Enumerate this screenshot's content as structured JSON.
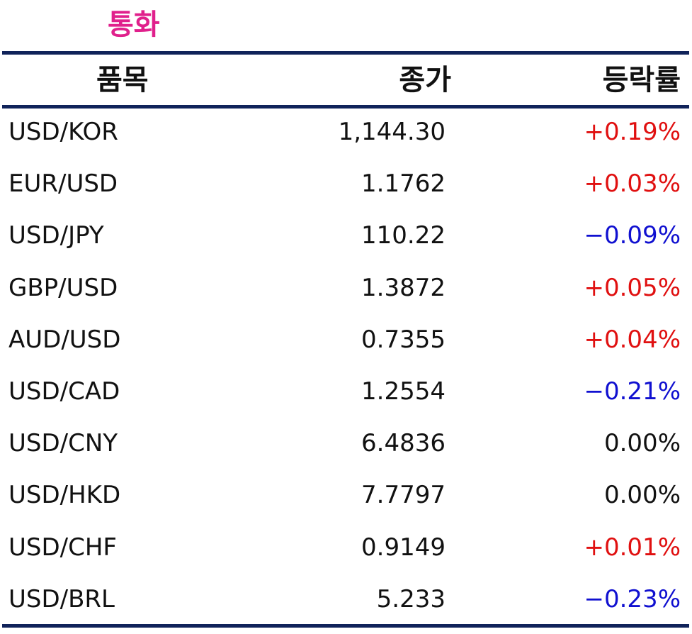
{
  "title": "통화",
  "colors": {
    "title": "#e0208c",
    "rule": "#10235a",
    "up": "#e01010",
    "down": "#1010d0",
    "flat": "#111111"
  },
  "headers": {
    "item": "품목",
    "close": "종가",
    "change": "등락률"
  },
  "rows": [
    {
      "item": "USD/KOR",
      "close": "1,144.30",
      "change": "+0.19%",
      "direction": "up"
    },
    {
      "item": "EUR/USD",
      "close": "1.1762",
      "change": "+0.03%",
      "direction": "up"
    },
    {
      "item": "USD/JPY",
      "close": "110.22",
      "change": "−0.09%",
      "direction": "down"
    },
    {
      "item": "GBP/USD",
      "close": "1.3872",
      "change": "+0.05%",
      "direction": "up"
    },
    {
      "item": "AUD/USD",
      "close": "0.7355",
      "change": "+0.04%",
      "direction": "up"
    },
    {
      "item": "USD/CAD",
      "close": "1.2554",
      "change": "−0.21%",
      "direction": "down"
    },
    {
      "item": "USD/CNY",
      "close": "6.4836",
      "change": "0.00%",
      "direction": "flat"
    },
    {
      "item": "USD/HKD",
      "close": "7.7797",
      "change": "0.00%",
      "direction": "flat"
    },
    {
      "item": "USD/CHF",
      "close": "0.9149",
      "change": "+0.01%",
      "direction": "up"
    },
    {
      "item": "USD/BRL",
      "close": "5.233",
      "change": "−0.23%",
      "direction": "down"
    }
  ]
}
